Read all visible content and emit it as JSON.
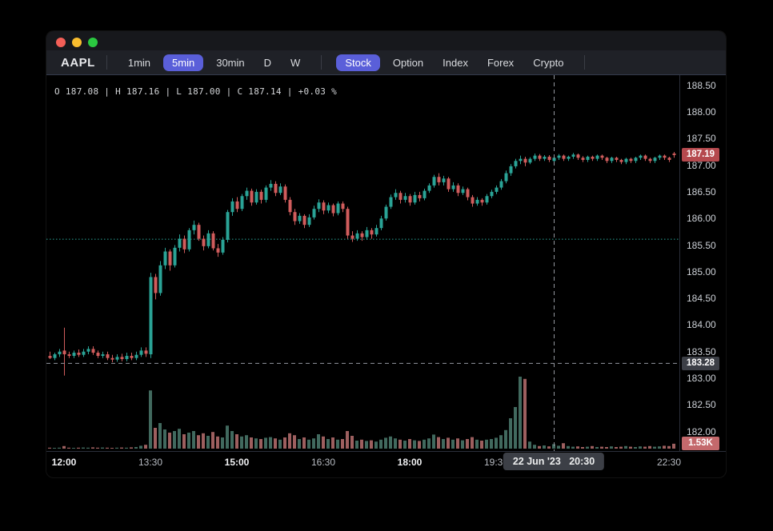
{
  "toolbar": {
    "symbol": "AAPL",
    "timeframes": [
      {
        "label": "1min",
        "selected": false
      },
      {
        "label": "5min",
        "selected": true
      },
      {
        "label": "30min",
        "selected": false
      },
      {
        "label": "D",
        "selected": false
      },
      {
        "label": "W",
        "selected": false
      }
    ],
    "markets": [
      {
        "label": "Stock",
        "selected": true
      },
      {
        "label": "Option",
        "selected": false
      },
      {
        "label": "Index",
        "selected": false
      },
      {
        "label": "Forex",
        "selected": false
      },
      {
        "label": "Crypto",
        "selected": false
      }
    ]
  },
  "info_bar": {
    "text": "O 187.08  |  H 187.16  |  L 187.00  |  C 187.14  |  +0.03 %"
  },
  "badges": {
    "last_price": "187.19",
    "crosshair_price": "183.28",
    "last_volume": "1.53K",
    "crosshair_time": "22 Jun '23   20:30"
  },
  "colors": {
    "up": "#2aa396",
    "down": "#d05c5c",
    "up_volume": "#41695e",
    "down_volume": "#9d5f5f",
    "accent_pill": "#5a5fd9",
    "last_price_badge_bg": "#b5494e",
    "volume_badge_bg": "#c4696c",
    "gray_badge_bg": "#3c3f46",
    "reference_line": "#2aa396",
    "crosshair": "#9598a1"
  },
  "chart_data": {
    "type": "candlestick",
    "symbol": "AAPL",
    "interval": "5min",
    "date": "22 Jun '23",
    "start_time": "11:45",
    "interval_minutes": 5,
    "visible_price_range": [
      181.6,
      188.7
    ],
    "reference_line_price": 185.61,
    "last_price": 187.19,
    "hovered_bar": {
      "time": "20:30",
      "open": 187.08,
      "high": 187.16,
      "low": 187.0,
      "close": 187.14,
      "change_pct": "+0.03 %"
    },
    "crosshair": {
      "bar_index": 105,
      "price": 183.28
    },
    "price_axis_ticks": [
      "188.50",
      "188.00",
      "187.50",
      "187.00",
      "186.50",
      "186.00",
      "185.50",
      "185.00",
      "184.50",
      "184.00",
      "183.50",
      "183.00",
      "182.50",
      "182.00"
    ],
    "time_axis_ticks": [
      {
        "label": "12:00",
        "index": 3,
        "major": true
      },
      {
        "label": "13:30",
        "index": 21,
        "major": false
      },
      {
        "label": "15:00",
        "index": 39,
        "major": true
      },
      {
        "label": "16:30",
        "index": 57,
        "major": false
      },
      {
        "label": "18:00",
        "index": 75,
        "major": true
      },
      {
        "label": "19:30",
        "index": 93,
        "major": false
      },
      {
        "label": "22:30",
        "index": 129,
        "major": false
      }
    ],
    "candles": [
      [
        183.42,
        183.5,
        183.36,
        183.38
      ],
      [
        183.38,
        183.48,
        183.34,
        183.45
      ],
      [
        183.45,
        183.55,
        183.4,
        183.5
      ],
      [
        183.52,
        183.95,
        183.05,
        183.45
      ],
      [
        183.45,
        183.5,
        183.38,
        183.42
      ],
      [
        183.42,
        183.52,
        183.38,
        183.48
      ],
      [
        183.48,
        183.54,
        183.4,
        183.44
      ],
      [
        183.44,
        183.55,
        183.4,
        183.5
      ],
      [
        183.5,
        183.6,
        183.45,
        183.55
      ],
      [
        183.55,
        183.6,
        183.44,
        183.48
      ],
      [
        183.48,
        183.52,
        183.38,
        183.42
      ],
      [
        183.42,
        183.5,
        183.38,
        183.45
      ],
      [
        183.45,
        183.5,
        183.34,
        183.38
      ],
      [
        183.38,
        183.44,
        183.3,
        183.35
      ],
      [
        183.35,
        183.45,
        183.31,
        183.4
      ],
      [
        183.4,
        183.46,
        183.32,
        183.36
      ],
      [
        183.36,
        183.48,
        183.32,
        183.42
      ],
      [
        183.42,
        183.48,
        183.34,
        183.38
      ],
      [
        183.38,
        183.5,
        183.34,
        183.44
      ],
      [
        183.44,
        183.58,
        183.4,
        183.52
      ],
      [
        183.52,
        183.58,
        183.4,
        183.46
      ],
      [
        183.45,
        184.98,
        183.38,
        184.9
      ],
      [
        184.9,
        184.96,
        184.48,
        184.6
      ],
      [
        184.6,
        185.2,
        184.55,
        185.12
      ],
      [
        185.12,
        185.45,
        185.05,
        185.38
      ],
      [
        185.38,
        185.42,
        185.02,
        185.12
      ],
      [
        185.12,
        185.5,
        185.08,
        185.45
      ],
      [
        185.45,
        185.7,
        185.38,
        185.62
      ],
      [
        185.62,
        185.68,
        185.35,
        185.42
      ],
      [
        185.42,
        185.82,
        185.38,
        185.78
      ],
      [
        185.78,
        185.96,
        185.7,
        185.88
      ],
      [
        185.88,
        185.92,
        185.58,
        185.62
      ],
      [
        185.62,
        185.68,
        185.4,
        185.48
      ],
      [
        185.48,
        185.78,
        185.44,
        185.72
      ],
      [
        185.72,
        185.76,
        185.4,
        185.44
      ],
      [
        185.44,
        185.52,
        185.28,
        185.36
      ],
      [
        185.36,
        185.65,
        185.32,
        185.6
      ],
      [
        185.6,
        186.16,
        185.55,
        186.12
      ],
      [
        186.12,
        186.38,
        186.05,
        186.32
      ],
      [
        186.32,
        186.4,
        186.12,
        186.18
      ],
      [
        186.18,
        186.46,
        186.14,
        186.42
      ],
      [
        186.42,
        186.58,
        186.35,
        186.52
      ],
      [
        186.52,
        186.56,
        186.24,
        186.3
      ],
      [
        186.3,
        186.55,
        186.26,
        186.5
      ],
      [
        186.5,
        186.54,
        186.28,
        186.35
      ],
      [
        186.35,
        186.62,
        186.3,
        186.58
      ],
      [
        186.58,
        186.72,
        186.52,
        186.65
      ],
      [
        186.65,
        186.7,
        186.42,
        186.48
      ],
      [
        186.48,
        186.66,
        186.44,
        186.6
      ],
      [
        186.6,
        186.64,
        186.3,
        186.35
      ],
      [
        186.35,
        186.4,
        186.06,
        186.12
      ],
      [
        186.12,
        186.18,
        185.88,
        185.95
      ],
      [
        185.95,
        186.1,
        185.9,
        186.05
      ],
      [
        186.05,
        186.08,
        185.82,
        185.88
      ],
      [
        185.88,
        186.08,
        185.84,
        186.02
      ],
      [
        186.02,
        186.24,
        185.98,
        186.18
      ],
      [
        186.18,
        186.36,
        186.12,
        186.3
      ],
      [
        186.3,
        186.34,
        186.08,
        186.15
      ],
      [
        186.15,
        186.3,
        186.1,
        186.25
      ],
      [
        186.25,
        186.28,
        186.04,
        186.1
      ],
      [
        186.1,
        186.32,
        186.06,
        186.28
      ],
      [
        186.28,
        186.32,
        186.12,
        186.18
      ],
      [
        186.18,
        186.22,
        185.62,
        185.68
      ],
      [
        185.68,
        185.76,
        185.56,
        185.62
      ],
      [
        185.62,
        185.78,
        185.58,
        185.72
      ],
      [
        185.72,
        185.76,
        185.58,
        185.65
      ],
      [
        185.65,
        185.84,
        185.6,
        185.78
      ],
      [
        185.78,
        185.82,
        185.62,
        185.7
      ],
      [
        185.7,
        185.88,
        185.66,
        185.82
      ],
      [
        185.82,
        186.05,
        185.78,
        186.0
      ],
      [
        186.0,
        186.26,
        185.96,
        186.22
      ],
      [
        186.22,
        186.45,
        186.18,
        186.4
      ],
      [
        186.4,
        186.55,
        186.35,
        186.48
      ],
      [
        186.48,
        186.52,
        186.28,
        186.35
      ],
      [
        186.35,
        186.48,
        186.3,
        186.42
      ],
      [
        186.42,
        186.46,
        186.24,
        186.3
      ],
      [
        186.3,
        186.5,
        186.26,
        186.44
      ],
      [
        186.44,
        186.5,
        186.32,
        186.38
      ],
      [
        186.38,
        186.56,
        186.34,
        186.52
      ],
      [
        186.52,
        186.66,
        186.48,
        186.62
      ],
      [
        186.62,
        186.82,
        186.58,
        186.78
      ],
      [
        186.78,
        186.85,
        186.62,
        186.68
      ],
      [
        186.68,
        186.8,
        186.62,
        186.75
      ],
      [
        186.75,
        186.78,
        186.5,
        186.55
      ],
      [
        186.55,
        186.68,
        186.5,
        186.62
      ],
      [
        186.62,
        186.66,
        186.42,
        186.48
      ],
      [
        186.48,
        186.6,
        186.44,
        186.55
      ],
      [
        186.55,
        186.58,
        186.34,
        186.4
      ],
      [
        186.4,
        186.44,
        186.22,
        186.28
      ],
      [
        186.28,
        186.4,
        186.24,
        186.35
      ],
      [
        186.35,
        186.38,
        186.24,
        186.3
      ],
      [
        186.3,
        186.46,
        186.26,
        186.42
      ],
      [
        186.42,
        186.54,
        186.38,
        186.5
      ],
      [
        186.5,
        186.62,
        186.46,
        186.58
      ],
      [
        186.58,
        186.74,
        186.54,
        186.7
      ],
      [
        186.7,
        186.9,
        186.66,
        186.85
      ],
      [
        186.85,
        187.02,
        186.8,
        186.98
      ],
      [
        186.98,
        187.12,
        186.94,
        187.08
      ],
      [
        187.08,
        187.18,
        187.02,
        187.12
      ],
      [
        187.12,
        187.16,
        186.98,
        187.05
      ],
      [
        187.05,
        187.15,
        187.02,
        187.12
      ],
      [
        187.12,
        187.22,
        187.08,
        187.18
      ],
      [
        187.18,
        187.21,
        187.08,
        187.12
      ],
      [
        187.12,
        187.19,
        187.08,
        187.16
      ],
      [
        187.16,
        187.19,
        187.06,
        187.1
      ],
      [
        187.08,
        187.16,
        187.0,
        187.14
      ],
      [
        187.14,
        187.21,
        187.1,
        187.18
      ],
      [
        187.18,
        187.2,
        187.08,
        187.12
      ],
      [
        187.12,
        187.18,
        187.08,
        187.16
      ],
      [
        187.16,
        187.23,
        187.12,
        187.2
      ],
      [
        187.2,
        187.22,
        187.1,
        187.14
      ],
      [
        187.14,
        187.17,
        187.06,
        187.1
      ],
      [
        187.1,
        187.18,
        187.06,
        187.16
      ],
      [
        187.16,
        187.18,
        187.08,
        187.12
      ],
      [
        187.12,
        187.2,
        187.08,
        187.18
      ],
      [
        187.18,
        187.2,
        187.1,
        187.14
      ],
      [
        187.14,
        187.16,
        187.04,
        187.08
      ],
      [
        187.08,
        187.16,
        187.04,
        187.14
      ],
      [
        187.14,
        187.16,
        187.06,
        187.1
      ],
      [
        187.1,
        187.12,
        187.02,
        187.06
      ],
      [
        187.06,
        187.14,
        187.02,
        187.12
      ],
      [
        187.12,
        187.14,
        187.04,
        187.08
      ],
      [
        187.08,
        187.16,
        187.04,
        187.14
      ],
      [
        187.14,
        187.2,
        187.1,
        187.18
      ],
      [
        187.18,
        187.2,
        187.08,
        187.12
      ],
      [
        187.12,
        187.14,
        187.04,
        187.08
      ],
      [
        187.08,
        187.16,
        187.04,
        187.14
      ],
      [
        187.14,
        187.2,
        187.1,
        187.18
      ],
      [
        187.18,
        187.2,
        187.1,
        187.14
      ],
      [
        187.14,
        187.16,
        187.06,
        187.1
      ],
      [
        187.22,
        187.25,
        187.14,
        187.19
      ]
    ],
    "volumes_k": [
      0.3,
      0.25,
      0.3,
      0.8,
      0.3,
      0.25,
      0.3,
      0.35,
      0.3,
      0.4,
      0.3,
      0.35,
      0.3,
      0.25,
      0.3,
      0.35,
      0.3,
      0.4,
      0.5,
      0.9,
      1.2,
      18.2,
      6.5,
      8.0,
      6.0,
      5.0,
      5.5,
      6.2,
      4.5,
      5.0,
      5.5,
      4.2,
      4.8,
      4.0,
      5.2,
      3.8,
      3.5,
      7.2,
      5.5,
      4.5,
      3.8,
      4.2,
      3.5,
      3.2,
      3.0,
      3.4,
      3.6,
      3.2,
      2.8,
      3.5,
      4.8,
      4.2,
      3.0,
      3.5,
      2.8,
      3.2,
      4.5,
      3.8,
      3.0,
      3.5,
      2.8,
      3.0,
      5.5,
      4.0,
      2.5,
      2.8,
      2.4,
      2.6,
      2.2,
      2.8,
      3.4,
      3.8,
      3.2,
      2.8,
      2.5,
      3.0,
      2.6,
      2.4,
      2.8,
      3.2,
      4.4,
      3.6,
      3.0,
      3.4,
      2.8,
      3.2,
      2.6,
      3.0,
      3.6,
      2.8,
      2.5,
      2.8,
      3.0,
      3.4,
      4.2,
      5.8,
      9.5,
      13.0,
      22.5,
      21.8,
      2.2,
      1.2,
      0.8,
      1.0,
      0.7,
      1.4,
      0.9,
      1.7,
      0.8,
      0.6,
      0.7,
      0.5,
      0.6,
      0.8,
      0.5,
      0.6,
      0.5,
      0.7,
      0.5,
      0.6,
      0.8,
      0.6,
      0.5,
      0.7,
      0.6,
      0.8,
      0.6,
      0.7,
      0.9,
      0.8,
      1.53
    ]
  }
}
